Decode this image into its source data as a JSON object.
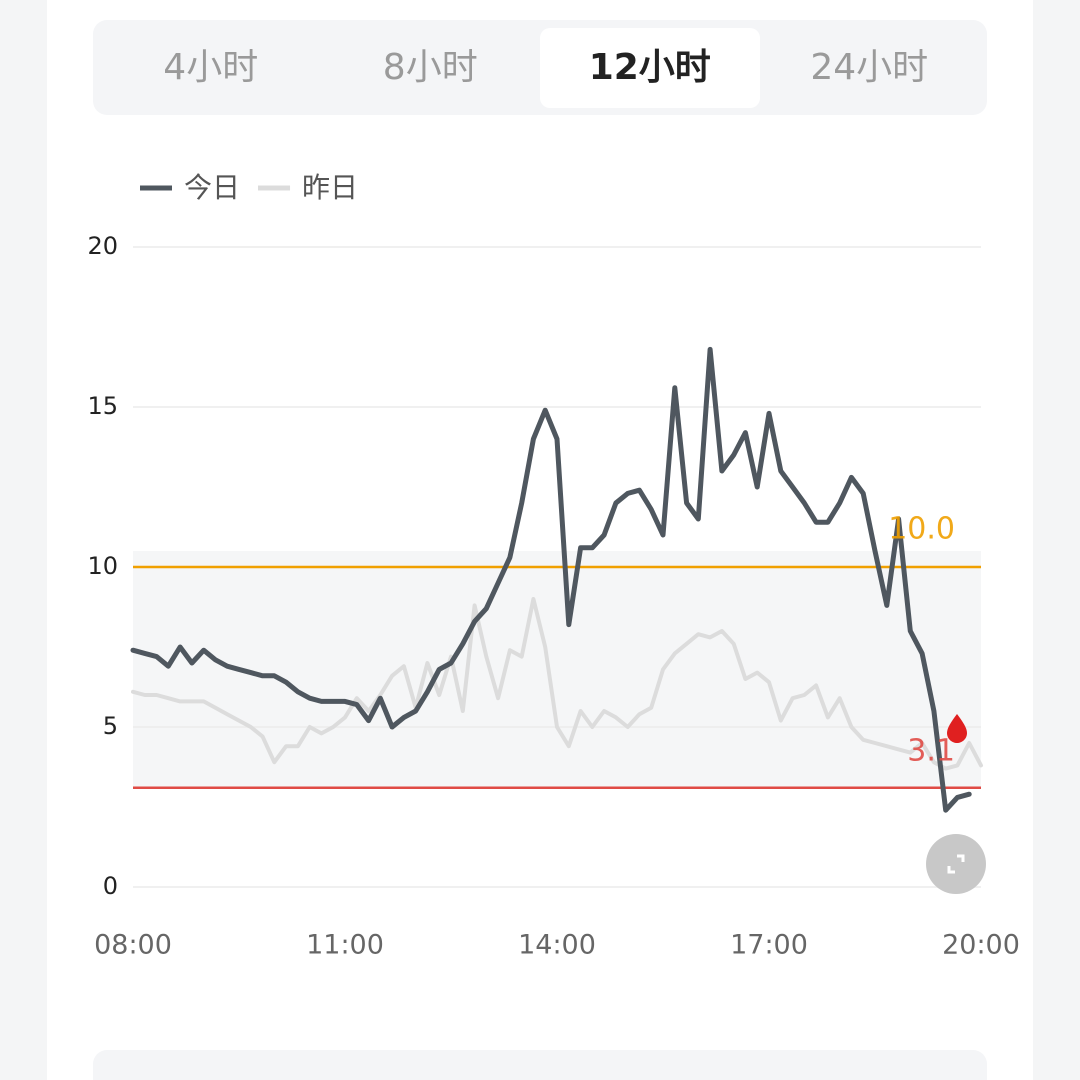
{
  "tabs": [
    {
      "label": "4小时",
      "selected": false
    },
    {
      "label": "8小时",
      "selected": false
    },
    {
      "label": "12小时",
      "selected": true
    },
    {
      "label": "24小时",
      "selected": false
    }
  ],
  "chart_data": {
    "type": "line",
    "x": [
      "08:00",
      "08:10",
      "08:20",
      "08:30",
      "08:40",
      "08:50",
      "09:00",
      "09:10",
      "09:20",
      "09:30",
      "09:40",
      "09:50",
      "10:00",
      "10:10",
      "10:20",
      "10:30",
      "10:40",
      "10:50",
      "11:00",
      "11:10",
      "11:20",
      "11:30",
      "11:40",
      "11:50",
      "12:00",
      "12:10",
      "12:20",
      "12:30",
      "12:40",
      "12:50",
      "13:00",
      "13:10",
      "13:20",
      "13:30",
      "13:40",
      "13:50",
      "14:00",
      "14:10",
      "14:20",
      "14:30",
      "14:40",
      "14:50",
      "15:00",
      "15:10",
      "15:20",
      "15:30",
      "15:40",
      "15:50",
      "16:00",
      "16:10",
      "16:20",
      "16:30",
      "16:40",
      "16:50",
      "17:00",
      "17:10",
      "17:20",
      "17:30",
      "17:40",
      "17:50",
      "18:00",
      "18:10",
      "18:20",
      "18:30",
      "18:40",
      "18:50",
      "19:00",
      "19:10",
      "19:20",
      "19:30",
      "19:40",
      "19:50",
      "20:00"
    ],
    "series": [
      {
        "name": "今日",
        "color": "#4f575f",
        "values": [
          7.4,
          7.3,
          7.2,
          6.9,
          7.5,
          7.0,
          7.4,
          7.1,
          6.9,
          6.8,
          6.7,
          6.6,
          6.6,
          6.4,
          6.1,
          5.9,
          5.8,
          5.8,
          5.8,
          5.7,
          5.2,
          5.9,
          5.0,
          5.3,
          5.5,
          6.1,
          6.8,
          7.0,
          7.6,
          8.3,
          8.7,
          9.5,
          10.3,
          12.0,
          14.0,
          14.9,
          14.0,
          8.2,
          10.6,
          10.6,
          11.0,
          12.0,
          12.3,
          12.4,
          11.8,
          11.0,
          15.6,
          12.0,
          11.5,
          16.8,
          13.0,
          13.5,
          14.2,
          12.5,
          14.8,
          13.0,
          12.5,
          12.0,
          11.4,
          11.4,
          12.0,
          12.8,
          12.3,
          10.5,
          8.8,
          11.5,
          8.0,
          7.3,
          5.5,
          2.4,
          2.8,
          2.9,
          null
        ]
      },
      {
        "name": "昨日",
        "color": "#dcdcdc",
        "values": [
          6.1,
          6.0,
          6.0,
          5.9,
          5.8,
          5.8,
          5.8,
          5.6,
          5.4,
          5.2,
          5.0,
          4.7,
          3.9,
          4.4,
          4.4,
          5.0,
          4.8,
          5.0,
          5.3,
          5.9,
          5.5,
          6.0,
          6.6,
          6.9,
          5.6,
          7.0,
          6.0,
          7.2,
          5.5,
          8.8,
          7.2,
          5.9,
          7.4,
          7.2,
          9.0,
          7.5,
          5.0,
          4.4,
          5.5,
          5.0,
          5.5,
          5.3,
          5.0,
          5.4,
          5.6,
          6.8,
          7.3,
          7.6,
          7.9,
          7.8,
          8.0,
          7.6,
          6.5,
          6.7,
          6.4,
          5.2,
          5.9,
          6.0,
          6.3,
          5.3,
          5.9,
          5.0,
          4.6,
          4.5,
          4.4,
          4.3,
          4.2,
          4.5,
          3.9,
          3.7,
          3.8,
          4.5,
          3.8
        ]
      }
    ],
    "xlim": [
      "08:00",
      "20:00"
    ],
    "xticks": [
      "08:00",
      "11:00",
      "14:00",
      "17:00",
      "20:00"
    ],
    "ylim": [
      0,
      20
    ],
    "yticks": [
      0,
      5,
      10,
      15,
      20
    ],
    "grid": true,
    "band": [
      3.1,
      10.5
    ],
    "thresholds": [
      {
        "value": 10,
        "label": "10.0",
        "color": "#f0a000"
      },
      {
        "value": 3.1,
        "label": "3.1",
        "color": "#e04b45"
      }
    ]
  }
}
